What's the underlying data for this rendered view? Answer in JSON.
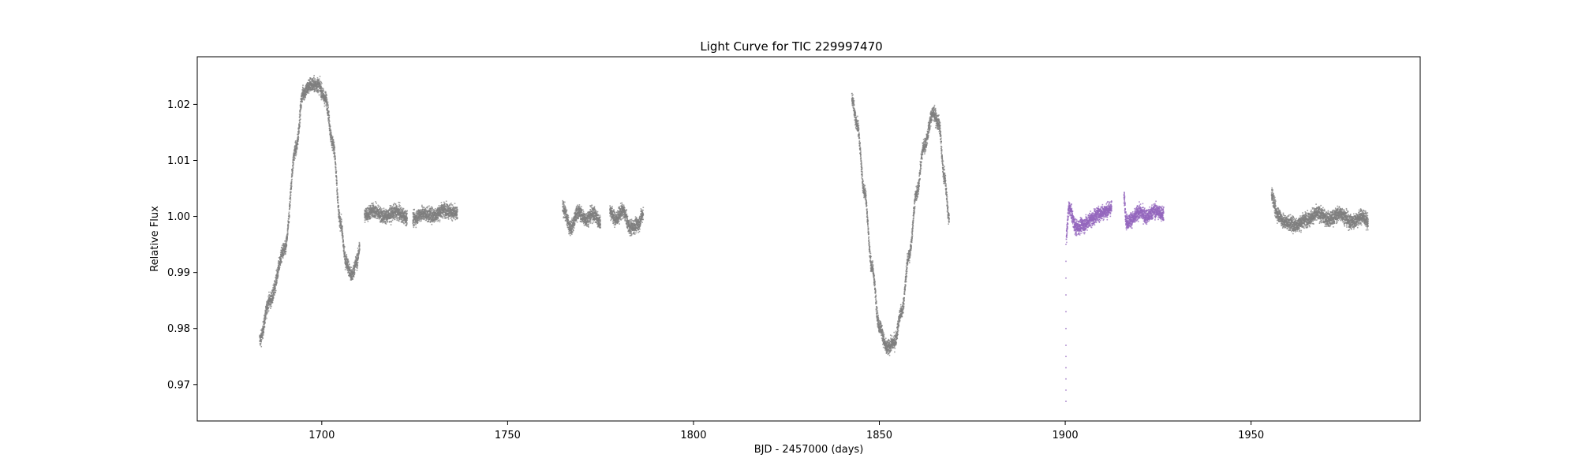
{
  "chart_data": {
    "type": "scatter",
    "title": "Light Curve for TIC 229997470",
    "xlabel": "BJD - 2457000 (days)",
    "ylabel": "Relative Flux",
    "xlim": [
      1666.5,
      1995.5
    ],
    "ylim": [
      0.9635,
      1.0285
    ],
    "xticks": [
      1700,
      1750,
      1800,
      1850,
      1900,
      1950
    ],
    "xtick_labels": [
      "1700",
      "1750",
      "1800",
      "1850",
      "1900",
      "1950"
    ],
    "yticks": [
      0.97,
      0.98,
      0.99,
      1.0,
      1.01,
      1.02
    ],
    "ytick_labels": [
      "0.97",
      "0.98",
      "0.99",
      "1.00",
      "1.01",
      "1.02"
    ],
    "grid": false,
    "legend": "none",
    "series": [
      {
        "color": "#7f7f7f",
        "scatter": 0.0009,
        "segments": [
          {
            "x": [
              1683.3,
              1686,
              1690,
              1693,
              1695,
              1697,
              1699,
              1701,
              1703,
              1705,
              1706.5,
              1708,
              1709.5,
              1710.2
            ],
            "y": [
              0.978,
              0.985,
              0.994,
              1.012,
              1.022,
              1.0235,
              1.0235,
              1.021,
              1.013,
              0.999,
              0.992,
              0.9895,
              0.992,
              0.9945
            ]
          },
          {
            "x": [
              1711.5,
              1714,
              1717,
              1720,
              1723
            ],
            "y": [
              1.0003,
              1.001,
              1.0,
              1.0008,
              0.9998
            ]
          },
          {
            "x": [
              1724.5,
              1727,
              1730,
              1733,
              1736.5
            ],
            "y": [
              0.9995,
              1.0005,
              1.0002,
              1.0012,
              1.0005
            ]
          },
          {
            "x": [
              1764.8,
              1767,
              1769,
              1771,
              1773,
              1775
            ],
            "y": [
              1.0015,
              0.998,
              1.0008,
              0.9995,
              1.0005,
              0.999
            ]
          },
          {
            "x": [
              1777.5,
              1779,
              1781,
              1783,
              1785,
              1786.5
            ],
            "y": [
              1.001,
              0.9995,
              1.001,
              0.998,
              0.9985,
              1.0005
            ]
          },
          {
            "x": [
              1842.6,
              1844,
              1846,
              1848,
              1850,
              1852,
              1854,
              1856,
              1858,
              1860,
              1862,
              1864.5,
              1866,
              1867.5,
              1868.8
            ],
            "y": [
              1.021,
              1.0165,
              1.0045,
              0.991,
              0.9805,
              0.9765,
              0.9775,
              0.983,
              0.993,
              1.004,
              1.0125,
              1.0185,
              1.0165,
              1.007,
              0.9995
            ]
          },
          {
            "x": [
              1955.5,
              1957,
              1959,
              1962,
              1965,
              1968,
              1971,
              1974,
              1977,
              1980,
              1981.5
            ],
            "y": [
              1.004,
              1.0005,
              0.999,
              0.9985,
              0.9995,
              1.0005,
              0.9995,
              1.0005,
              0.999,
              1.0,
              0.999
            ]
          }
        ]
      },
      {
        "color": "#9467bd",
        "scatter": 0.0009,
        "segments": [
          {
            "x": [
              1900.3,
              1901,
              1903,
              1905,
              1907,
              1909,
              1911,
              1912.5
            ],
            "y": [
              0.9965,
              1.0015,
              0.998,
              0.9985,
              0.9995,
              1.0005,
              1.001,
              1.0015
            ]
          },
          {
            "x": [
              1915.8,
              1916.5,
              1918,
              1920,
              1922,
              1924,
              1926.5
            ],
            "y": [
              1.0035,
              0.999,
              0.9995,
              1.0008,
              1.0,
              1.001,
              1.0005
            ]
          }
        ],
        "outliers": {
          "x": [
            1900.2,
            1900.2,
            1900.2,
            1900.2,
            1900.2,
            1900.2,
            1900.2,
            1900.2,
            1900.2,
            1900.2,
            1900.2,
            1900.2
          ],
          "y": [
            0.967,
            0.969,
            0.971,
            0.973,
            0.975,
            0.977,
            0.98,
            0.983,
            0.986,
            0.989,
            0.992,
            0.995
          ]
        }
      }
    ]
  }
}
